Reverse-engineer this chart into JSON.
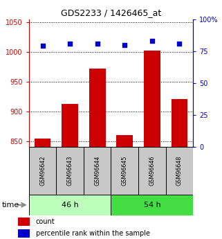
{
  "title": "GDS2233 / 1426465_at",
  "samples": [
    "GSM96642",
    "GSM96643",
    "GSM96644",
    "GSM96645",
    "GSM96646",
    "GSM96648"
  ],
  "count_values": [
    854,
    912,
    972,
    860,
    1002,
    921
  ],
  "percentile_values": [
    79,
    81,
    81,
    80,
    83,
    81
  ],
  "groups": [
    {
      "label": "46 h",
      "indices": [
        0,
        1,
        2
      ],
      "color": "#bbffbb"
    },
    {
      "label": "54 h",
      "indices": [
        3,
        4,
        5
      ],
      "color": "#44dd44"
    }
  ],
  "ylim_left": [
    840,
    1055
  ],
  "ylim_right": [
    0,
    100
  ],
  "yticks_left": [
    850,
    900,
    950,
    1000,
    1050
  ],
  "yticks_right": [
    0,
    25,
    50,
    75,
    100
  ],
  "bar_color": "#cc0000",
  "dot_color": "#0000cc",
  "sample_box_color": "#c8c8c8",
  "left_axis_color": "#cc0000",
  "right_axis_color": "#0000cc",
  "time_label": "time",
  "legend_count_label": "count",
  "legend_percentile_label": "percentile rank within the sample",
  "bar_width": 0.6
}
